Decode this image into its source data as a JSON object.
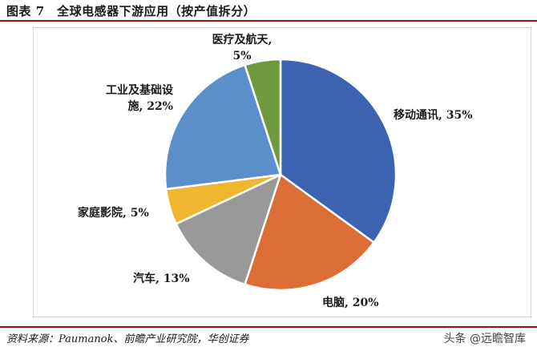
{
  "header": {
    "title": "图表 7　全球电感器下游应用（按产值拆分）"
  },
  "chart_data": {
    "type": "pie",
    "slices": [
      {
        "name": "移动通讯",
        "value": 35,
        "label": "移动通讯, 35%",
        "color": "#3d62b0"
      },
      {
        "name": "电脑",
        "value": 20,
        "label": "电脑, 20%",
        "color": "#dc6d34"
      },
      {
        "name": "汽车",
        "value": 13,
        "label": "汽车, 13%",
        "color": "#999999"
      },
      {
        "name": "家庭影院",
        "value": 5,
        "label": "家庭影院, 5%",
        "color": "#f2b530"
      },
      {
        "name": "工业及基础设施",
        "value": 22,
        "label_line1": "工业及基础设",
        "label_line2": "施, 22%",
        "color": "#5b8fcb"
      },
      {
        "name": "医疗及航天",
        "value": 5,
        "label_line1": "医疗及航天,",
        "label_line2": "5%",
        "color": "#6e9a3e"
      }
    ]
  },
  "footer": {
    "source": "资料来源：Paumanok、前瞻产业研究院，华创证券",
    "watermark": "头条 @远瞻智库"
  }
}
